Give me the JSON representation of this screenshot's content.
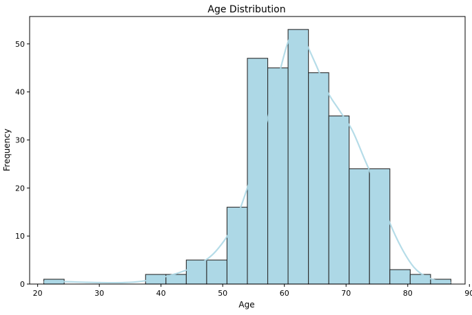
{
  "chart_data": {
    "type": "bar",
    "title": "Age Distribution",
    "xlabel": "Age",
    "ylabel": "Frequency",
    "xlim": [
      18.7,
      89.3
    ],
    "ylim": [
      0,
      55.7
    ],
    "xticks": [
      20,
      30,
      40,
      50,
      60,
      70,
      80,
      90
    ],
    "yticks": [
      0,
      10,
      20,
      30,
      40,
      50
    ],
    "grid": false,
    "series": [
      {
        "bins": [
          {
            "x0": 21.0,
            "x1": 24.3,
            "count": 1
          },
          {
            "x0": 24.3,
            "x1": 27.6,
            "count": 0
          },
          {
            "x0": 27.6,
            "x1": 30.9,
            "count": 0
          },
          {
            "x0": 30.9,
            "x1": 34.2,
            "count": 0
          },
          {
            "x0": 34.2,
            "x1": 37.5,
            "count": 0
          },
          {
            "x0": 37.5,
            "x1": 40.8,
            "count": 2
          },
          {
            "x0": 40.8,
            "x1": 44.1,
            "count": 2
          },
          {
            "x0": 44.1,
            "x1": 47.4,
            "count": 5
          },
          {
            "x0": 47.4,
            "x1": 50.7,
            "count": 5
          },
          {
            "x0": 50.7,
            "x1": 54.0,
            "count": 16
          },
          {
            "x0": 54.0,
            "x1": 57.3,
            "count": 47
          },
          {
            "x0": 57.3,
            "x1": 60.6,
            "count": 45
          },
          {
            "x0": 60.6,
            "x1": 63.9,
            "count": 53
          },
          {
            "x0": 63.9,
            "x1": 67.2,
            "count": 44
          },
          {
            "x0": 67.2,
            "x1": 70.5,
            "count": 35
          },
          {
            "x0": 70.5,
            "x1": 73.8,
            "count": 24
          },
          {
            "x0": 73.8,
            "x1": 77.1,
            "count": 24
          },
          {
            "x0": 77.1,
            "x1": 80.4,
            "count": 3
          },
          {
            "x0": 80.4,
            "x1": 83.7,
            "count": 2
          },
          {
            "x0": 83.7,
            "x1": 87.0,
            "count": 1
          }
        ],
        "color": "#add8e6",
        "edge_color": "#2b2b2b"
      }
    ],
    "kde": {
      "color": "#add8e6",
      "points": [
        [
          21,
          0.4
        ],
        [
          24,
          0.5
        ],
        [
          27,
          0.4
        ],
        [
          30,
          0.3
        ],
        [
          34,
          0.3
        ],
        [
          37,
          0.6
        ],
        [
          40,
          1.3
        ],
        [
          43,
          2.4
        ],
        [
          46,
          4.0
        ],
        [
          49,
          7.0
        ],
        [
          52,
          13.0
        ],
        [
          55,
          24.0
        ],
        [
          57,
          33.0
        ],
        [
          59,
          43.0
        ],
        [
          61,
          51.5
        ],
        [
          63,
          51.0
        ],
        [
          65,
          46.0
        ],
        [
          67,
          40.0
        ],
        [
          69,
          36.0
        ],
        [
          71,
          32.0
        ],
        [
          73,
          26.0
        ],
        [
          75,
          20.0
        ],
        [
          77,
          13.0
        ],
        [
          79,
          7.5
        ],
        [
          81,
          3.5
        ],
        [
          83,
          1.5
        ],
        [
          85,
          0.6
        ],
        [
          87,
          0.3
        ]
      ]
    }
  }
}
